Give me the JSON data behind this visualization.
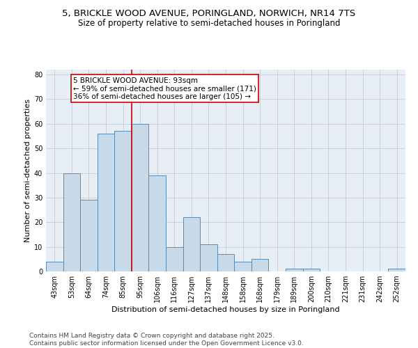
{
  "title_line1": "5, BRICKLE WOOD AVENUE, PORINGLAND, NORWICH, NR14 7TS",
  "title_line2": "Size of property relative to semi-detached houses in Poringland",
  "xlabel": "Distribution of semi-detached houses by size in Poringland",
  "ylabel": "Number of semi-detached properties",
  "bin_labels": [
    "43sqm",
    "53sqm",
    "64sqm",
    "74sqm",
    "85sqm",
    "95sqm",
    "106sqm",
    "116sqm",
    "127sqm",
    "137sqm",
    "148sqm",
    "158sqm",
    "168sqm",
    "179sqm",
    "189sqm",
    "200sqm",
    "210sqm",
    "221sqm",
    "231sqm",
    "242sqm",
    "252sqm"
  ],
  "bar_heights": [
    4,
    40,
    29,
    56,
    57,
    60,
    39,
    10,
    22,
    11,
    7,
    4,
    5,
    0,
    1,
    1,
    0,
    0,
    0,
    0,
    1
  ],
  "bar_color": "#c8d9e8",
  "bar_edge_color": "#5a8ab5",
  "highlight_index": 5,
  "property_label": "5 BRICKLE WOOD AVENUE: 93sqm",
  "annotation_line2": "← 59% of semi-detached houses are smaller (171)",
  "annotation_line3": "36% of semi-detached houses are larger (105) →",
  "annotation_box_color": "#ffffff",
  "annotation_edge_color": "#cc0000",
  "red_line_color": "#cc0000",
  "ylim": [
    0,
    82
  ],
  "yticks": [
    0,
    10,
    20,
    30,
    40,
    50,
    60,
    70,
    80
  ],
  "grid_color": "#c8c8d0",
  "background_color": "#e8eef5",
  "footer_line1": "Contains HM Land Registry data © Crown copyright and database right 2025.",
  "footer_line2": "Contains public sector information licensed under the Open Government Licence v3.0.",
  "title_fontsize": 9.5,
  "subtitle_fontsize": 8.5,
  "axis_label_fontsize": 8,
  "tick_fontsize": 7,
  "annotation_fontsize": 7.5,
  "footer_fontsize": 6.5
}
